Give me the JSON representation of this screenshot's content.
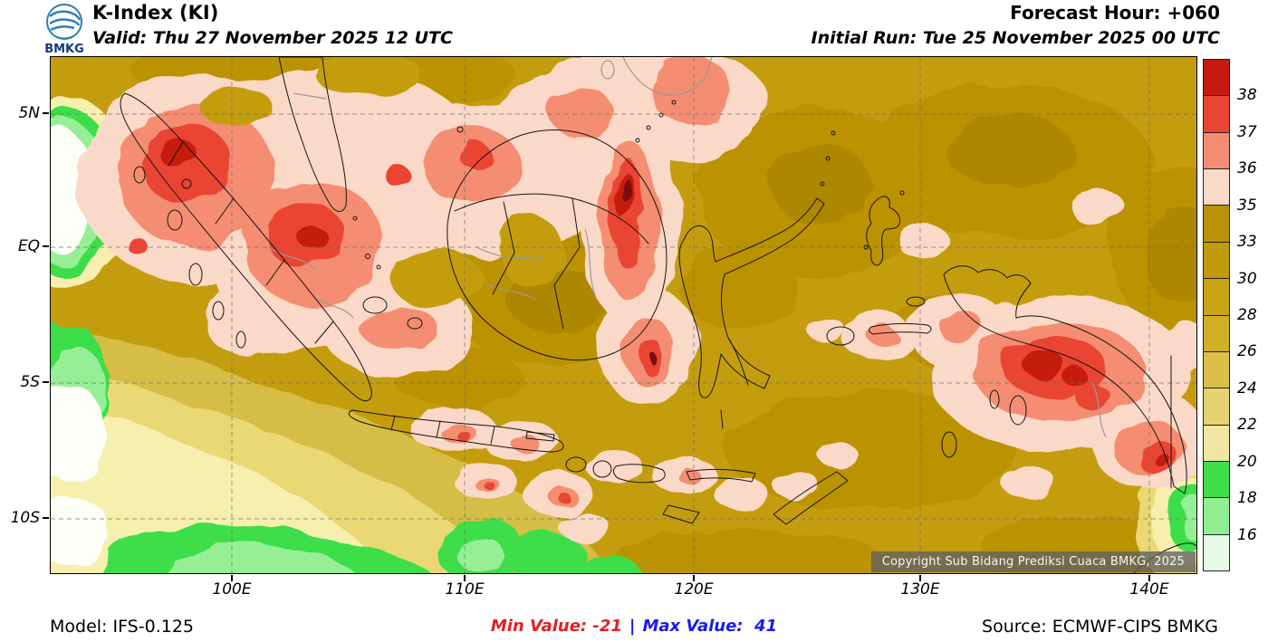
{
  "header": {
    "logo_text": "BMKG",
    "title": "K-Index (KI)",
    "valid_label": "Valid: Thu 27 November 2025 12 UTC",
    "forecast_hour": "Forecast Hour: +060",
    "initial_run": "Initial Run: Tue 25 November 2025 00 UTC"
  },
  "map": {
    "lat_labels": [
      "5N",
      "EQ",
      "5S",
      "10S"
    ],
    "lon_labels": [
      "100E",
      "110E",
      "120E",
      "130E",
      "140E"
    ],
    "copyright": "Copyright Sub Bidang Prediksi Cuaca BMKG, 2025"
  },
  "legend": {
    "labels": [
      "38",
      "37",
      "36",
      "35",
      "33",
      "30",
      "28",
      "26",
      "24",
      "22",
      "20",
      "18",
      "16"
    ],
    "boxes": [
      "#c41a10",
      "#ea4433",
      "#f58d72",
      "#fbd9c8",
      "#bb9203",
      "#c29b0b",
      "#c9a513",
      "#d1b027",
      "#dbbf48",
      "#e7d272",
      "#f2e7a2",
      "#3ede49",
      "#90ee90",
      "#e6fbe6"
    ]
  },
  "footer": {
    "model": "Model: IFS-0.125",
    "min_value": "Min Value: -21",
    "separator": "|",
    "max_value": "Max Value:  41",
    "source": "Source: ECMWF-CIPS BMKG"
  },
  "colors": {
    "base_gold": "#c49d0e",
    "min_red": "#e02020",
    "max_blue": "#1a1aee"
  }
}
